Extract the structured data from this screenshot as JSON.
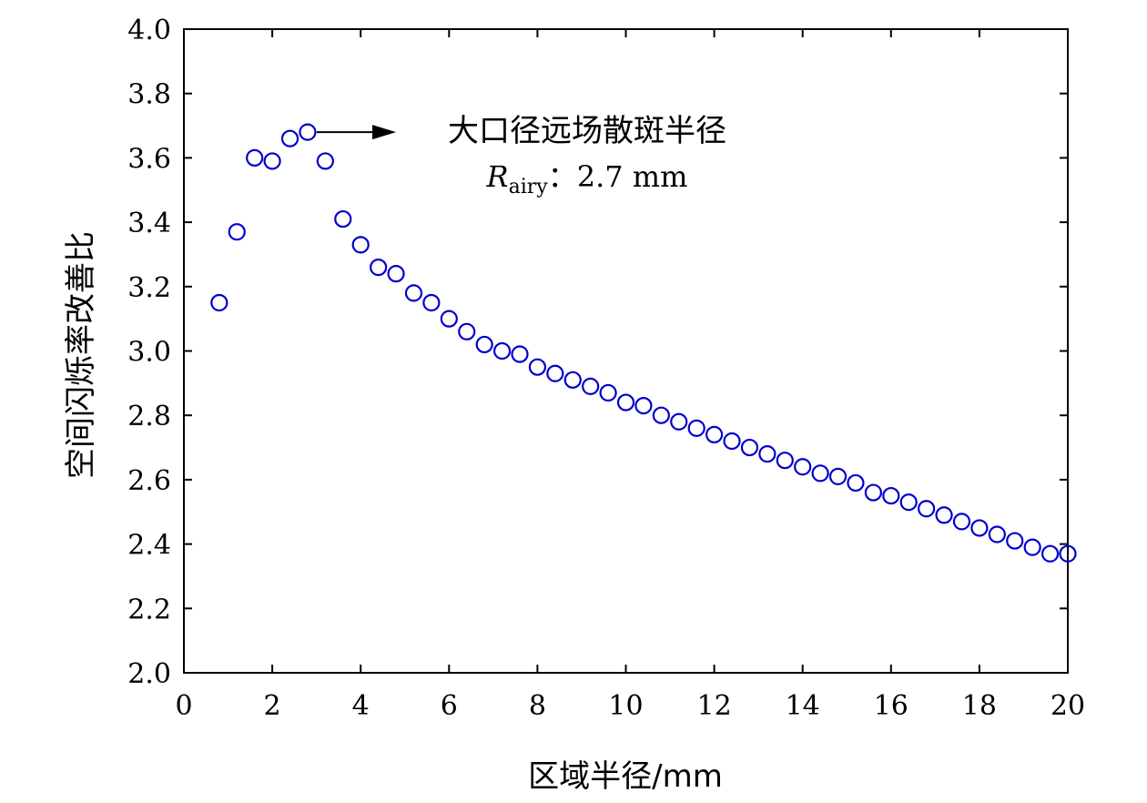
{
  "chart_data": {
    "type": "scatter",
    "title": "",
    "xlabel": "区域半径/mm",
    "ylabel": "空间闪烁率改善比",
    "xlim": [
      0,
      20
    ],
    "ylim": [
      2.0,
      4.0
    ],
    "xticks": [
      0,
      2,
      4,
      6,
      8,
      10,
      12,
      14,
      16,
      18,
      20
    ],
    "yticks": [
      "2.0",
      "2.2",
      "2.4",
      "2.6",
      "2.8",
      "3.0",
      "3.2",
      "3.4",
      "3.6",
      "3.8",
      "4.0"
    ],
    "grid": false,
    "marker": "hollow-circle",
    "color": "#0000cc",
    "series": [
      {
        "name": "空间闪烁率改善比",
        "x": [
          0.8,
          1.2,
          1.6,
          2.0,
          2.4,
          2.8,
          3.2,
          3.6,
          4.0,
          4.4,
          4.8,
          5.2,
          5.6,
          6.0,
          6.4,
          6.8,
          7.2,
          7.6,
          8.0,
          8.4,
          8.8,
          9.2,
          9.6,
          10.0,
          10.4,
          10.8,
          11.2,
          11.6,
          12.0,
          12.4,
          12.8,
          13.2,
          13.6,
          14.0,
          14.4,
          14.8,
          15.2,
          15.6,
          16.0,
          16.4,
          16.8,
          17.2,
          17.6,
          18.0,
          18.4,
          18.8,
          19.2,
          19.6,
          20.0
        ],
        "y": [
          3.15,
          3.37,
          3.6,
          3.59,
          3.66,
          3.68,
          3.59,
          3.41,
          3.33,
          3.26,
          3.24,
          3.18,
          3.15,
          3.1,
          3.06,
          3.02,
          3.0,
          2.99,
          2.95,
          2.93,
          2.91,
          2.89,
          2.87,
          2.84,
          2.83,
          2.8,
          2.78,
          2.76,
          2.74,
          2.72,
          2.7,
          2.68,
          2.66,
          2.64,
          2.62,
          2.61,
          2.59,
          2.56,
          2.55,
          2.53,
          2.51,
          2.49,
          2.47,
          2.45,
          2.43,
          2.41,
          2.39,
          2.37,
          2.37
        ]
      }
    ],
    "annotation": {
      "text": "大口径远场散斑半径",
      "r_label": "R",
      "r_sub": "airy",
      "value_text": "：2.7 mm",
      "arrow_from": [
        2.8,
        3.68
      ],
      "arrow_to": [
        4.8,
        3.68
      ]
    }
  }
}
